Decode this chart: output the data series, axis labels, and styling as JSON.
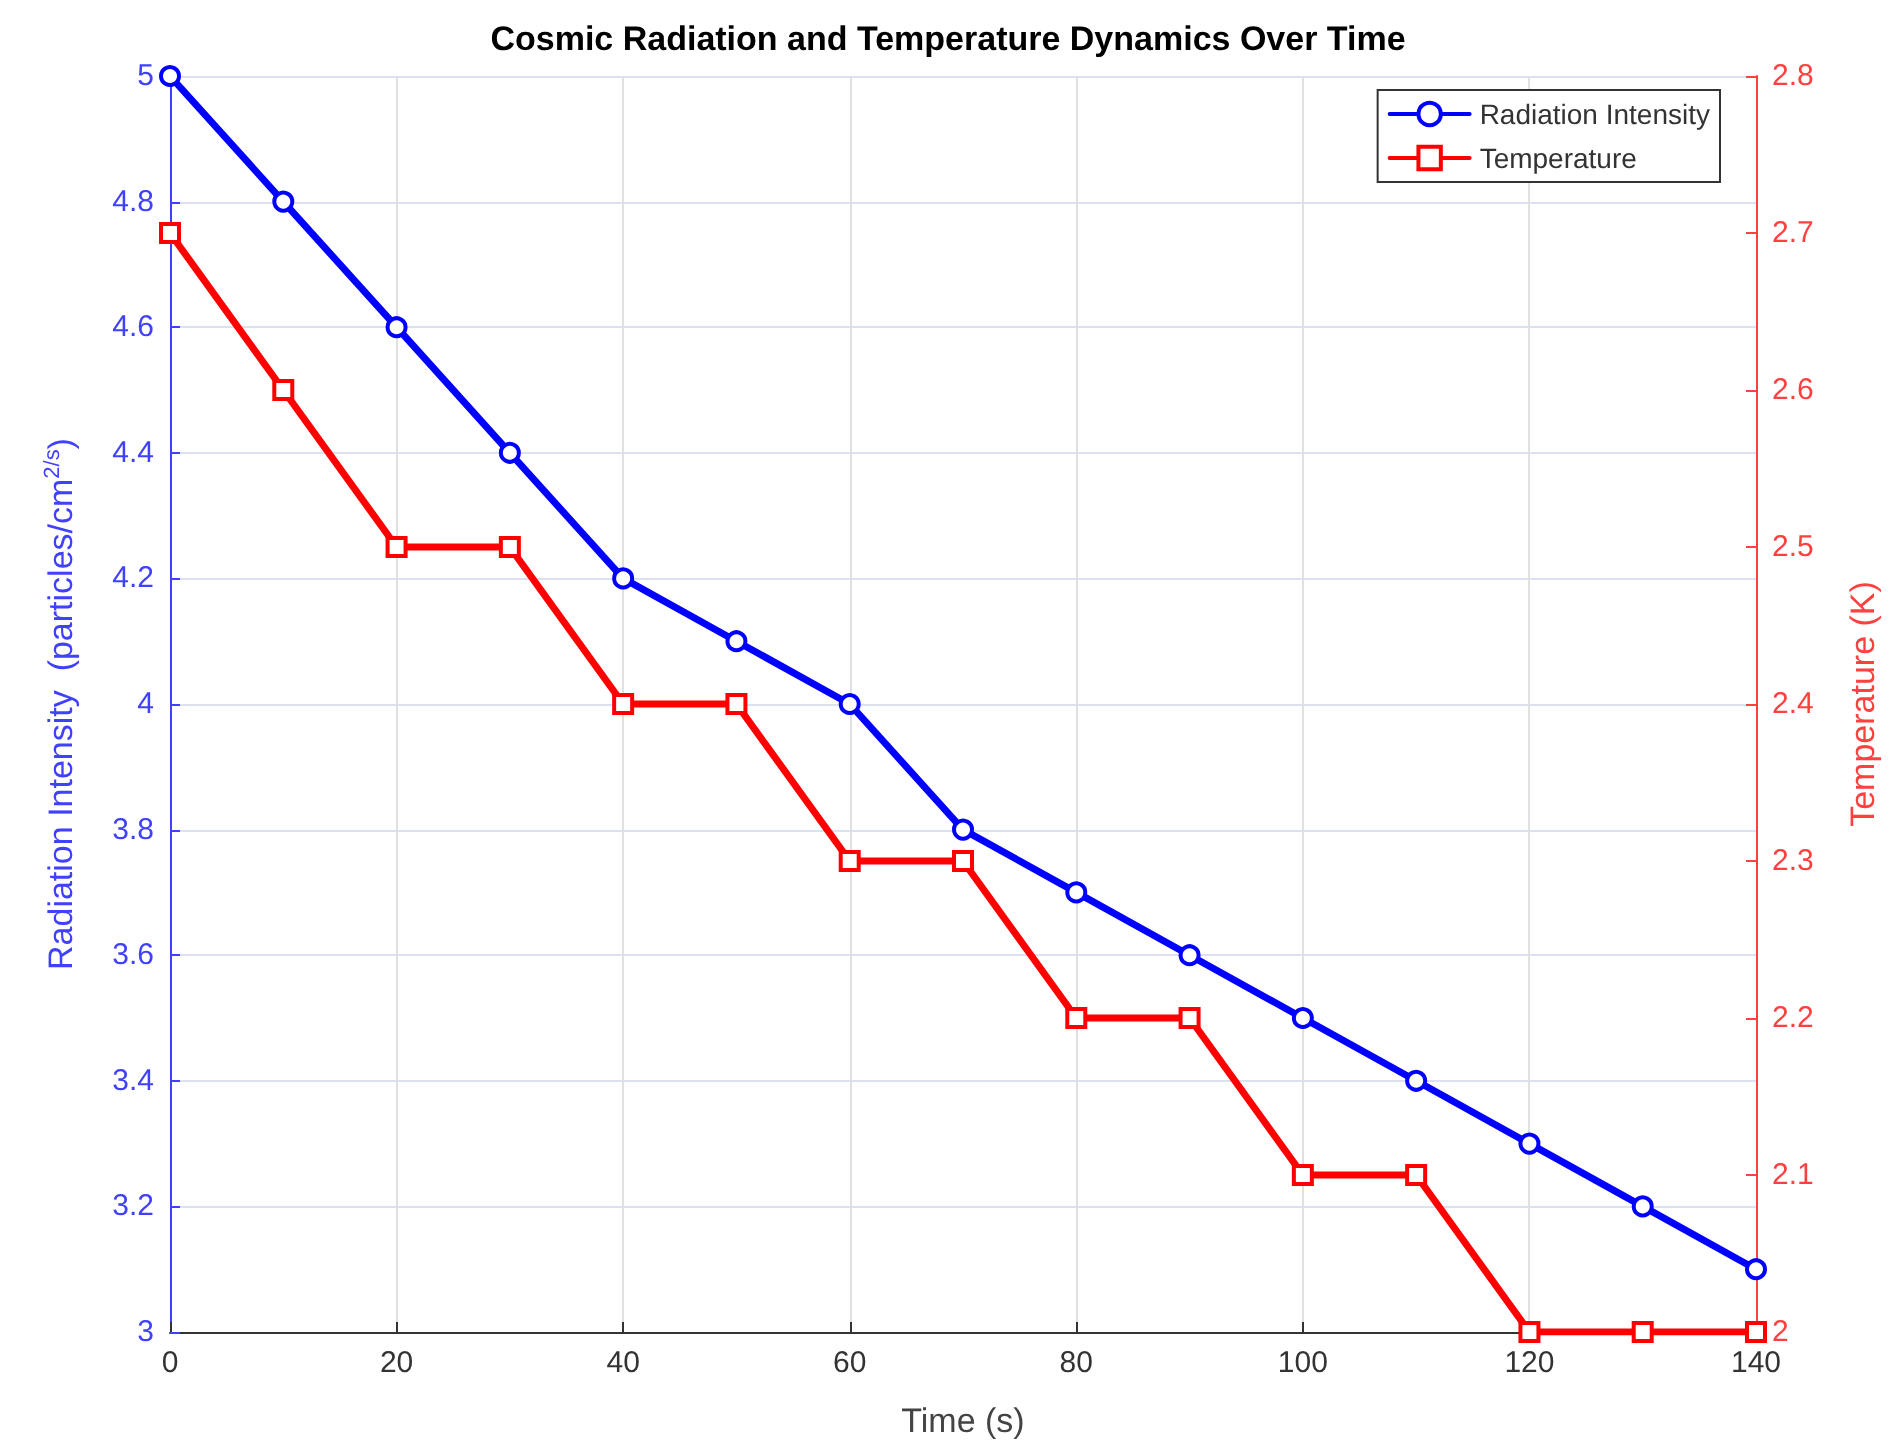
{
  "chart_data": {
    "type": "line",
    "title": "Cosmic Radiation and Temperature Dynamics Over Time",
    "xlabel": "Time (s)",
    "ylabel": "Radiation Intensity  (particles/cm$^{2/s}$)",
    "y2label": "Temperature (K)",
    "x": [
      0,
      10,
      20,
      30,
      40,
      50,
      60,
      70,
      80,
      90,
      100,
      110,
      120,
      130,
      140
    ],
    "series": [
      {
        "name": "Radiation Intensity",
        "color": "#0000ff",
        "marker": "circle",
        "values": [
          5,
          4.8,
          4.6,
          4.4,
          4.2,
          4.1,
          4.0,
          3.8,
          3.7,
          3.6,
          3.5,
          3.4,
          3.3,
          3.2,
          3.1
        ]
      },
      {
        "name": "Temperature",
        "color": "#ff0000",
        "marker": "square",
        "axis": "y2",
        "values": [
          2.7,
          2.6,
          2.5,
          2.5,
          2.4,
          2.4,
          2.3,
          2.3,
          2.2,
          2.2,
          2.1,
          2.1,
          2.0,
          2.0,
          2.0
        ]
      }
    ],
    "xlim": [
      0,
      140
    ],
    "xticks": [
      0,
      20,
      40,
      60,
      80,
      100,
      120,
      140
    ],
    "ylim": [
      3,
      5
    ],
    "yticks": [
      3,
      3.2,
      3.4,
      3.6,
      3.8,
      4,
      4.2,
      4.4,
      4.6,
      4.8,
      5
    ],
    "y2lim": [
      2,
      2.8
    ],
    "y2ticks": [
      2,
      2.1,
      2.2,
      2.3,
      2.4,
      2.5,
      2.6,
      2.7,
      2.8
    ],
    "grid": true,
    "legend": "top right",
    "line_style": "solid"
  }
}
